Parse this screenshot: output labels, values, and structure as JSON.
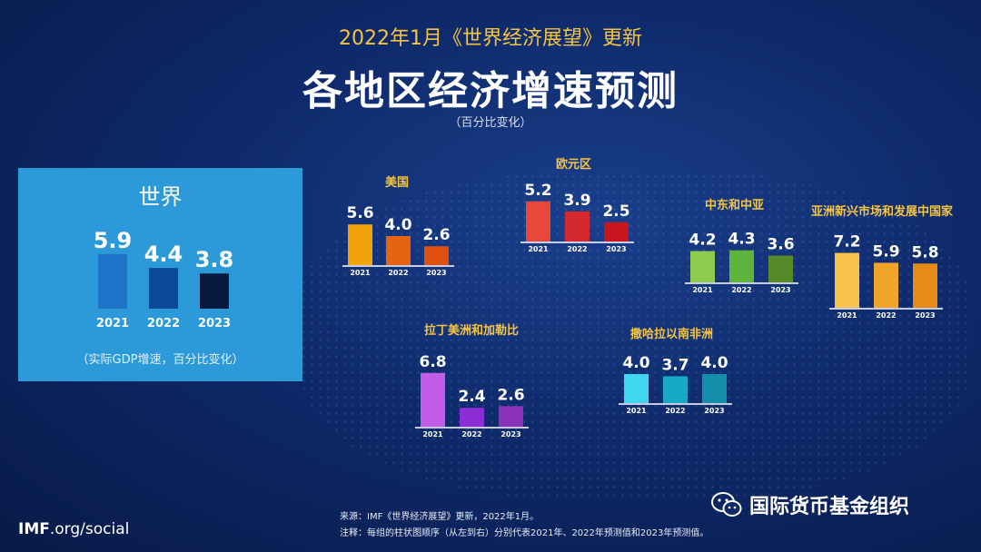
{
  "header": {
    "subtitle": "2022年1月《世界经济展望》更新",
    "title": "各地区经济增速预测",
    "unit": "（百分比变化）"
  },
  "world_panel": {
    "title": "世界",
    "note": "（实际GDP增速，百分比变化）"
  },
  "colors": {
    "background": "#0e2a6b",
    "world_panel": "#2c9ad9",
    "title_accent": "#f5c542"
  },
  "chart_data": [
    {
      "type": "bar",
      "title": "世界",
      "categories": [
        "2021",
        "2022",
        "2023"
      ],
      "values": [
        5.9,
        4.4,
        3.8
      ],
      "colors": [
        "#1f74c9",
        "#0b4a98",
        "#07193f"
      ]
    },
    {
      "type": "bar",
      "title": "美国",
      "categories": [
        "2021",
        "2022",
        "2023"
      ],
      "values": [
        5.6,
        4.0,
        2.6
      ],
      "colors": [
        "#f2a20a",
        "#e6630f",
        "#e0500f"
      ]
    },
    {
      "type": "bar",
      "title": "欧元区",
      "categories": [
        "2021",
        "2022",
        "2023"
      ],
      "values": [
        5.2,
        3.9,
        2.5
      ],
      "colors": [
        "#e8483a",
        "#d4292e",
        "#c8161d"
      ]
    },
    {
      "type": "bar",
      "title": "中东和中亚",
      "categories": [
        "2021",
        "2022",
        "2023"
      ],
      "values": [
        4.2,
        4.3,
        3.6
      ],
      "colors": [
        "#8fcb4e",
        "#5fb53b",
        "#578a2b"
      ]
    },
    {
      "type": "bar",
      "title": "亚洲新兴市场和发展中国家",
      "categories": [
        "2021",
        "2022",
        "2023"
      ],
      "values": [
        7.2,
        5.9,
        5.8
      ],
      "colors": [
        "#f7c24a",
        "#f0a428",
        "#e68c16"
      ]
    },
    {
      "type": "bar",
      "title": "拉丁美洲和加勒比",
      "categories": [
        "2021",
        "2022",
        "2023"
      ],
      "values": [
        6.8,
        2.4,
        2.6
      ],
      "colors": [
        "#c15ce6",
        "#8c2ed6",
        "#8a32b8"
      ]
    },
    {
      "type": "bar",
      "title": "撒哈拉以南非洲",
      "categories": [
        "2021",
        "2022",
        "2023"
      ],
      "values": [
        4.0,
        3.7,
        4.0
      ],
      "colors": [
        "#3fd6f0",
        "#17a9c6",
        "#138fab"
      ]
    }
  ],
  "footer": {
    "source": "来源：IMF《世界经济展望》更新，2022年1月。",
    "note": "注释：每组的柱状图顺序（从左到右）分别代表2021年、2022年预测值和2023年预测值。",
    "imf_bold": "IMF",
    "imf_rest": ".org/social",
    "wechat_name": "国际货币基金组织"
  }
}
